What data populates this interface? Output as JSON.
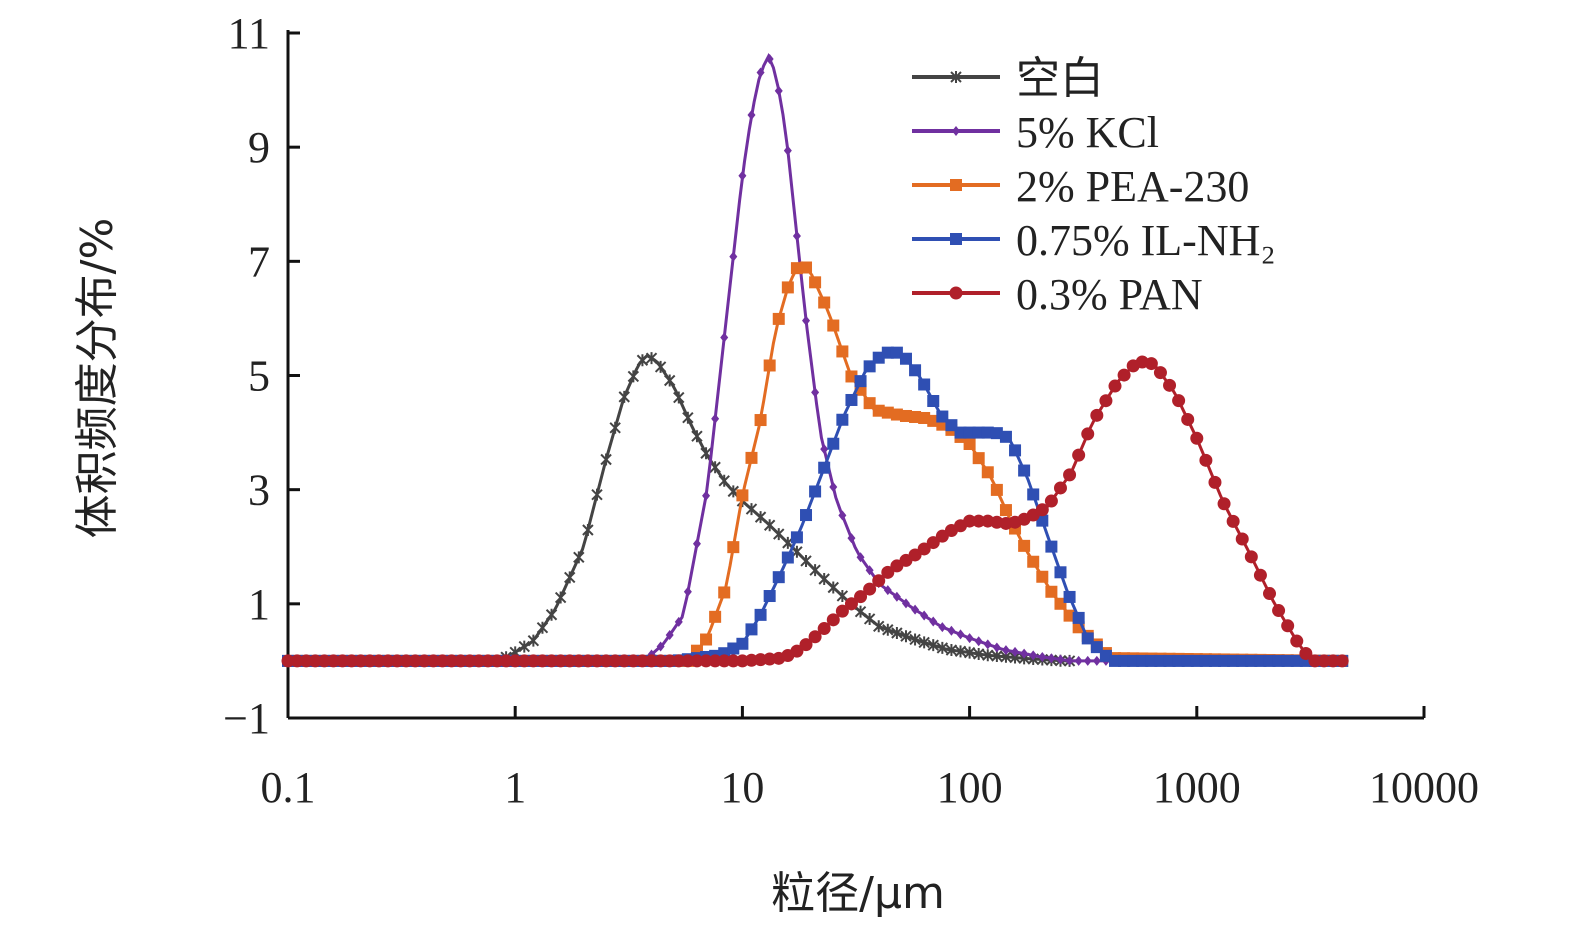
{
  "chart_data": {
    "type": "line",
    "x_scale": "log",
    "xlim": [
      0.1,
      10000
    ],
    "ylim": [
      -1,
      11
    ],
    "xlabel": "粒径/μm",
    "ylabel": "体积频度分布/%",
    "x_ticks": [
      "0.1",
      "1",
      "10",
      "100",
      "1000",
      "10000"
    ],
    "y_ticks": [
      "−1",
      "1",
      "3",
      "5",
      "7",
      "9",
      "11"
    ],
    "legend_position": "top-right",
    "grid": false,
    "series": [
      {
        "name": "空白",
        "color": "#444444",
        "marker": "star",
        "x": [
          0.1,
          0.5,
          0.85,
          1.0,
          1.2,
          1.5,
          2.0,
          2.5,
          3.0,
          3.5,
          3.8,
          4.2,
          5.0,
          6.0,
          7.0,
          8.5,
          10,
          13,
          17,
          22,
          30,
          40,
          60,
          80,
          120,
          180,
          260,
          300
        ],
        "y": [
          0,
          0,
          0,
          0.15,
          0.35,
          0.9,
          2.0,
          3.5,
          4.6,
          5.2,
          5.35,
          5.25,
          4.8,
          4.1,
          3.6,
          3.1,
          2.8,
          2.4,
          1.95,
          1.5,
          1.0,
          0.6,
          0.35,
          0.2,
          0.1,
          0.04,
          0,
          0
        ]
      },
      {
        "name": "5% KCl",
        "color": "#7030a0",
        "marker": "diamond",
        "x": [
          0.1,
          2.0,
          3.7,
          4.5,
          5.5,
          7.0,
          8.5,
          10,
          11,
          12,
          13,
          14,
          15.5,
          17,
          19,
          22,
          26,
          32,
          40,
          55,
          75,
          100,
          140,
          200,
          280,
          4500
        ],
        "y": [
          0,
          0,
          0,
          0.3,
          0.8,
          3.0,
          6.0,
          8.5,
          9.6,
          10.3,
          10.6,
          10.3,
          9.3,
          7.8,
          6.0,
          4.0,
          2.8,
          1.9,
          1.35,
          0.95,
          0.6,
          0.4,
          0.2,
          0.08,
          0,
          0
        ]
      },
      {
        "name": "2% PEA-230",
        "color": "#e36c22",
        "marker": "square",
        "x": [
          0.1,
          3.0,
          5.8,
          7.0,
          8.5,
          10,
          12,
          14,
          16,
          18,
          20,
          24,
          30,
          38,
          50,
          65,
          80,
          100,
          125,
          150,
          180,
          230,
          300,
          420,
          4500
        ],
        "y": [
          0,
          0,
          0,
          0.4,
          1.3,
          2.9,
          4.2,
          5.8,
          6.6,
          7.0,
          6.8,
          6.1,
          5.0,
          4.4,
          4.3,
          4.25,
          4.1,
          3.8,
          3.2,
          2.5,
          1.9,
          1.2,
          0.6,
          0.05,
          0
        ]
      },
      {
        "name": "0.75% IL-NH₂",
        "color": "#2f4fb3",
        "marker": "square",
        "x": [
          0.1,
          5.0,
          8.0,
          10,
          12,
          15,
          18,
          22,
          28,
          35,
          42,
          50,
          60,
          75,
          90,
          110,
          130,
          150,
          180,
          220,
          270,
          330,
          420,
          4500
        ],
        "y": [
          0,
          0,
          0.1,
          0.3,
          0.8,
          1.6,
          2.3,
          3.2,
          4.3,
          5.1,
          5.4,
          5.4,
          5.0,
          4.3,
          4.0,
          4.0,
          4.0,
          3.9,
          3.2,
          2.2,
          1.2,
          0.4,
          0,
          0
        ]
      },
      {
        "name": "0.3% PAN",
        "color": "#b0202a",
        "marker": "circle",
        "x": [
          0.1,
          5.0,
          10,
          15,
          18,
          22,
          28,
          35,
          45,
          60,
          80,
          100,
          120,
          150,
          180,
          220,
          280,
          350,
          450,
          550,
          650,
          800,
          1000,
          1300,
          1700,
          2200,
          2800,
          3200,
          4500
        ],
        "y": [
          0,
          0,
          0,
          0.05,
          0.2,
          0.5,
          0.9,
          1.2,
          1.6,
          1.9,
          2.25,
          2.45,
          2.45,
          2.4,
          2.5,
          2.7,
          3.3,
          4.2,
          4.9,
          5.25,
          5.2,
          4.7,
          3.9,
          2.8,
          1.9,
          1.0,
          0.3,
          0,
          0
        ]
      }
    ]
  }
}
